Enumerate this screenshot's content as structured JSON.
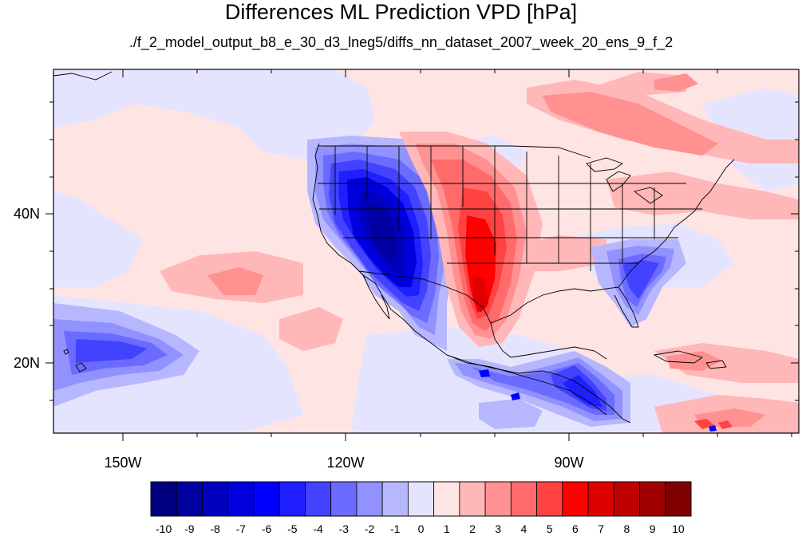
{
  "title": "Differences ML Prediction VPD [hPa]",
  "subtitle": "./f_2_model_output_b8_e_30_d3_lneg5/diffs_nn_dataset_2007_week_20_ens_9_f_2",
  "map": {
    "lon_range": [
      -160,
      -60
    ],
    "lat_range": [
      11,
      58
    ],
    "x_ticks": [
      "150W",
      "120W",
      "90W"
    ],
    "y_ticks": [
      "40N",
      "20N"
    ]
  },
  "colorbar": {
    "labels": [
      "-10",
      "-9",
      "-8",
      "-7",
      "-6",
      "-5",
      "-4",
      "-3",
      "-2",
      "-1",
      "0",
      "1",
      "2",
      "3",
      "4",
      "5",
      "6",
      "7",
      "8",
      "9",
      "10"
    ],
    "colors": [
      "#000080",
      "#0000a0",
      "#0000bf",
      "#0000df",
      "#0000ff",
      "#1f1fff",
      "#4343ff",
      "#6b6bff",
      "#9191ff",
      "#b7b7ff",
      "#e4e4ff",
      "#ffe4e4",
      "#ffb7b7",
      "#ff9191",
      "#ff6b6b",
      "#ff4343",
      "#ff0000",
      "#df0000",
      "#bf0000",
      "#a00000",
      "#800000"
    ]
  }
}
